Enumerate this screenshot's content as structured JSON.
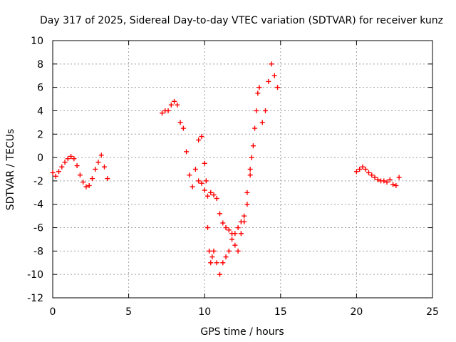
{
  "chart_data": {
    "type": "scatter",
    "title": "Day 317 of 2025, Sidereal Day-to-day VTEC variation (SDTVAR) for receiver kunz",
    "xlabel": "GPS time / hours",
    "ylabel": "SDTVAR / TECUs",
    "xlim": [
      0,
      25
    ],
    "ylim": [
      -12,
      10
    ],
    "xticks": [
      0,
      5,
      10,
      15,
      20,
      25
    ],
    "yticks": [
      -12,
      -10,
      -8,
      -6,
      -4,
      -2,
      0,
      2,
      4,
      6,
      8,
      10
    ],
    "grid": true,
    "marker": "plus",
    "color": "#ff0000",
    "series": [
      {
        "name": "segment-1",
        "x": [
          0.0,
          0.2,
          0.4,
          0.6,
          0.8,
          1.0,
          1.2,
          1.4,
          1.6,
          1.8,
          2.0,
          2.2,
          2.4,
          2.6,
          2.8,
          3.0,
          3.2,
          3.4,
          3.6
        ],
        "y": [
          -1.3,
          -1.6,
          -1.2,
          -0.8,
          -0.4,
          -0.1,
          0.1,
          -0.1,
          -0.7,
          -1.5,
          -2.1,
          -2.5,
          -2.4,
          -1.8,
          -1.0,
          -0.4,
          0.2,
          -0.8,
          -1.8
        ]
      },
      {
        "name": "segment-2",
        "x": [
          7.2,
          7.4,
          7.6,
          7.8,
          8.0,
          8.2,
          8.4,
          8.6,
          8.8,
          9.0,
          9.2,
          9.4,
          9.6,
          9.8,
          10.0,
          10.1,
          10.2,
          10.3,
          10.4,
          10.5,
          10.6,
          10.8,
          11.0,
          11.2,
          11.4,
          11.6,
          11.8,
          12.0,
          12.2,
          12.4,
          12.6,
          12.8,
          13.0,
          13.1,
          13.2,
          13.3,
          13.4,
          13.5,
          13.6,
          13.8,
          14.0,
          14.2,
          14.4,
          14.6,
          14.8
        ],
        "y": [
          3.8,
          4.0,
          4.0,
          4.5,
          4.8,
          4.5,
          3.0,
          2.5,
          0.5,
          -1.5,
          -2.5,
          -1.0,
          1.5,
          1.8,
          -0.5,
          -2.0,
          -6.0,
          -8.0,
          -9.0,
          -8.5,
          -8.0,
          -9.0,
          -10.0,
          -9.0,
          -8.5,
          -8.0,
          -7.0,
          -6.5,
          -6.0,
          -5.5,
          -5.5,
          -4.0,
          -1.5,
          0.0,
          1.0,
          2.5,
          4.0,
          5.5,
          6.0,
          3.0,
          4.0,
          6.5,
          8.0,
          7.0,
          6.0
        ]
      },
      {
        "name": "segment-2b",
        "x": [
          9.6,
          9.8,
          10.0,
          10.2,
          10.4,
          10.6,
          10.8,
          11.0,
          11.2,
          11.4,
          11.6,
          11.8,
          12.0,
          12.2,
          12.4,
          12.6,
          12.8,
          13.0
        ],
        "y": [
          -2.0,
          -2.2,
          -2.8,
          -3.3,
          -3.0,
          -3.2,
          -3.5,
          -4.8,
          -5.6,
          -6.0,
          -6.2,
          -6.5,
          -7.5,
          -8.0,
          -6.5,
          -5.0,
          -3.0,
          -1.0
        ]
      },
      {
        "name": "segment-3",
        "x": [
          20.0,
          20.2,
          20.4,
          20.6,
          20.8,
          21.0,
          21.2,
          21.4,
          21.6,
          21.8,
          22.0,
          22.2,
          22.4,
          22.6,
          22.8
        ],
        "y": [
          -1.2,
          -1.0,
          -0.8,
          -1.0,
          -1.3,
          -1.5,
          -1.7,
          -1.9,
          -2.0,
          -2.0,
          -2.1,
          -1.9,
          -2.3,
          -2.4,
          -1.7
        ]
      }
    ]
  }
}
